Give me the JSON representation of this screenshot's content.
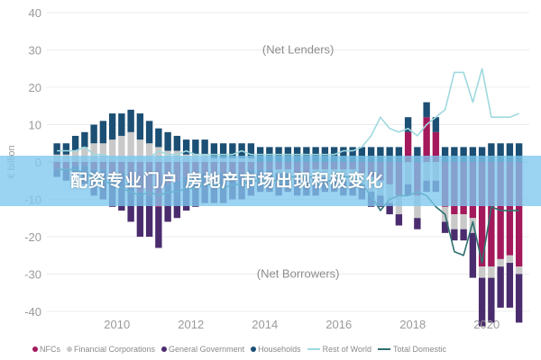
{
  "banner": {
    "text": "配资专业门户 房地产市场出现积极变化"
  },
  "chart_data": {
    "type": "bar",
    "ylabel": "€ billion",
    "ylim": [
      -40,
      40
    ],
    "yticks": [
      -40,
      -30,
      -20,
      -10,
      0,
      10,
      20,
      30,
      40
    ],
    "xticks": [
      "2010",
      "2012",
      "2014",
      "2016",
      "2018",
      "2020"
    ],
    "x_start": 2008.25,
    "quarters": 51,
    "grid": true,
    "legend_position": "bottom",
    "annotations": [
      {
        "text": "(Net Lenders)",
        "x": 2014.9,
        "y": 30
      },
      {
        "text": "(Net Borrowers)",
        "x": 2014.9,
        "y": -30
      }
    ],
    "series": [
      {
        "name": "NFCs",
        "kind": "bar",
        "color": "#a3195b",
        "values": [
          -2,
          -2,
          -1,
          -1,
          -2,
          -2,
          -3,
          -3,
          -5,
          -8,
          -9,
          -12,
          -6,
          -5,
          -4,
          -3,
          -3,
          -3,
          -3,
          -3,
          -3,
          -2,
          -2,
          -2,
          -2,
          -2,
          -3,
          -3,
          -2,
          -2,
          -2,
          -2,
          -2,
          -3,
          -4,
          -5,
          -6,
          -9,
          8,
          -9,
          12,
          8,
          -12,
          -14,
          -14,
          -15,
          -28,
          -28,
          -26,
          -25,
          -28
        ]
      },
      {
        "name": "Financial Corporations",
        "kind": "bar",
        "color": "#c9c9c9",
        "values": [
          2,
          2,
          3,
          4,
          5,
          5,
          6,
          7,
          8,
          6,
          5,
          4,
          3,
          3,
          2,
          2,
          2,
          1,
          1,
          1,
          1,
          1,
          0,
          0,
          -1,
          -1,
          -1,
          -1,
          -2,
          -2,
          -2,
          -3,
          -3,
          -3,
          -4,
          -4,
          -5,
          -5,
          -6,
          -6,
          -5,
          -5,
          -4,
          -4,
          -4,
          -4,
          -3,
          -3,
          -2,
          -2,
          -2
        ]
      },
      {
        "name": "General Government",
        "kind": "bar",
        "color": "#4a2c6e",
        "values": [
          -2,
          -3,
          -4,
          -5,
          -7,
          -8,
          -9,
          -10,
          -11,
          -12,
          -11,
          -11,
          -10,
          -10,
          -9,
          -9,
          -8,
          -8,
          -8,
          -7,
          -7,
          -7,
          -6,
          -6,
          -6,
          -5,
          -5,
          -5,
          -5,
          -4,
          -4,
          -4,
          -4,
          -4,
          -4,
          -3,
          -3,
          -3,
          -3,
          -3,
          -3,
          -3,
          -3,
          -3,
          -3,
          -12,
          -13,
          -12,
          -11,
          -12,
          -13
        ]
      },
      {
        "name": "Households",
        "kind": "bar",
        "color": "#1c4f74",
        "values": [
          3,
          3,
          4,
          4,
          5,
          6,
          7,
          6,
          6,
          7,
          6,
          5,
          5,
          4,
          4,
          4,
          4,
          4,
          4,
          4,
          4,
          4,
          4,
          4,
          4,
          4,
          4,
          4,
          4,
          4,
          4,
          4,
          4,
          4,
          4,
          4,
          4,
          4,
          4,
          4,
          4,
          4,
          4,
          4,
          4,
          4,
          4,
          5,
          5,
          5,
          5
        ]
      },
      {
        "name": "Rest of World",
        "kind": "line",
        "color": "#9fd9df",
        "values": [
          3,
          3,
          3,
          4,
          2,
          2,
          1,
          1,
          1,
          1,
          1,
          3,
          2,
          2,
          3,
          2,
          2,
          2,
          2,
          2,
          3,
          2,
          2,
          2,
          2,
          2,
          2,
          2,
          2,
          2,
          2,
          3,
          3,
          4,
          7,
          12,
          9,
          8,
          9,
          7,
          10,
          12,
          14,
          24,
          24,
          16,
          25,
          12,
          12,
          12,
          13
        ]
      },
      {
        "name": "Total Domestic",
        "kind": "line",
        "color": "#2e6f6f",
        "values": [
          -2,
          -2,
          -2,
          -3,
          -4,
          -5,
          -6,
          -7,
          -8,
          -9,
          -8,
          -9,
          -8,
          -8,
          -7,
          -7,
          -6,
          -6,
          -7,
          -6,
          -6,
          -5,
          -5,
          -5,
          -5,
          -4,
          -4,
          -4,
          -4,
          -5,
          -5,
          -4,
          -4,
          -6,
          -9,
          -13,
          -10,
          -9,
          -9,
          -8,
          -9,
          -12,
          -14,
          -24,
          -25,
          -16,
          -27,
          -12,
          -13,
          -13,
          -13
        ]
      }
    ]
  },
  "legend": {
    "items": [
      {
        "label": "NFCs",
        "color": "#a3195b",
        "shape": "dot"
      },
      {
        "label": "Financial Corporations",
        "color": "#c9c9c9",
        "shape": "dot"
      },
      {
        "label": "General Government",
        "color": "#4a2c6e",
        "shape": "dot"
      },
      {
        "label": "Households",
        "color": "#1c4f74",
        "shape": "dot"
      },
      {
        "label": "Rest of World",
        "color": "#9fd9df",
        "shape": "line"
      },
      {
        "label": "Total Domestic",
        "color": "#2e6f6f",
        "shape": "line"
      }
    ]
  }
}
